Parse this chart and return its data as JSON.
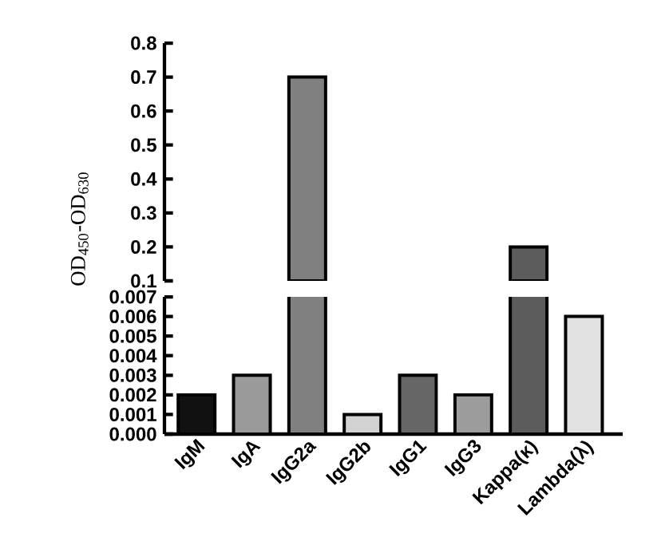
{
  "chart_data": [
    {
      "type": "bar",
      "ylabel": "OD$_{450}$-OD$_{630}$",
      "values": [
        null,
        null,
        0.7,
        null,
        null,
        null,
        0.2,
        null
      ],
      "colors": [
        "#111111",
        "#9a9a9a",
        "#808080",
        "#d2d2d2",
        "#666666",
        "#9c9c9c",
        "#5c5c5c",
        "#e2e2e2"
      ],
      "ylim": [
        0.1,
        0.8
      ],
      "yticks": [
        0.1,
        0.2,
        0.3,
        0.4,
        0.5,
        0.6,
        0.7,
        0.8
      ],
      "tick_labels": "y"
    },
    {
      "type": "bar",
      "categories": [
        "IgM",
        "IgA",
        "IgG2a",
        "IgG2b",
        "IgG1",
        "IgG3",
        "Kappa(κ)",
        "Lambda(λ)"
      ],
      "values": [
        0.002,
        0.003,
        null,
        0.001,
        0.003,
        0.002,
        null,
        0.006
      ],
      "colors": [
        "#111111",
        "#9a9a9a",
        "#808080",
        "#d2d2d2",
        "#666666",
        "#9c9c9c",
        "#5c5c5c",
        "#e2e2e2"
      ],
      "ylim": [
        0,
        0.007
      ],
      "yticks": [
        {
          "value": 0,
          "label": "0.000"
        },
        {
          "value": 0.001,
          "label": "0.001"
        },
        {
          "value": 0.002,
          "label": "0.002"
        },
        {
          "value": 0.003,
          "label": "0.003"
        },
        {
          "value": 0.004,
          "label": "0.004"
        },
        {
          "value": 0.005,
          "label": "0.005"
        },
        {
          "value": 0.006,
          "label": "0.006"
        },
        {
          "value": 0.007,
          "label": "0.007"
        }
      ]
    }
  ]
}
